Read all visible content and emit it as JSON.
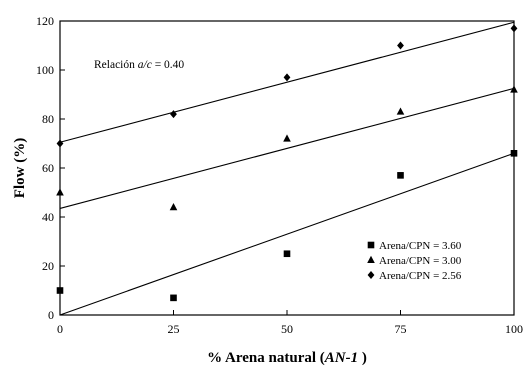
{
  "chart_data": {
    "type": "scatter",
    "xlabel_parts": {
      "prefix": "% Arena natural (",
      "italic": "AN-1",
      "suffix": " )"
    },
    "ylabel": "Flow (%)",
    "xlim": [
      0,
      100
    ],
    "ylim": [
      0,
      120
    ],
    "xticks": [
      0,
      25,
      50,
      75,
      100
    ],
    "yticks": [
      0,
      20,
      40,
      60,
      80,
      100,
      120
    ],
    "annotation_parts": {
      "prefix": "Relación ",
      "italic": "a/c",
      "suffix": " = 0.40"
    },
    "legend_position": "bottom-right",
    "grid": false,
    "series": [
      {
        "name": "Arena/CPN = 3.60",
        "marker": "square",
        "x": [
          0,
          25,
          50,
          75,
          100
        ],
        "y": [
          10,
          7,
          25,
          57,
          66
        ],
        "trendline": [
          0,
          66
        ]
      },
      {
        "name": "Arena/CPN = 3.00",
        "marker": "triangle",
        "x": [
          0,
          25,
          50,
          75,
          100
        ],
        "y": [
          50,
          44,
          72,
          83,
          92
        ],
        "trendline": [
          43.5,
          92.5
        ]
      },
      {
        "name": "Arena/CPN = 2.56",
        "marker": "diamond",
        "x": [
          0,
          25,
          50,
          75,
          100
        ],
        "y": [
          70,
          82,
          97,
          110,
          117
        ],
        "trendline": [
          70.5,
          119.5
        ]
      }
    ]
  }
}
